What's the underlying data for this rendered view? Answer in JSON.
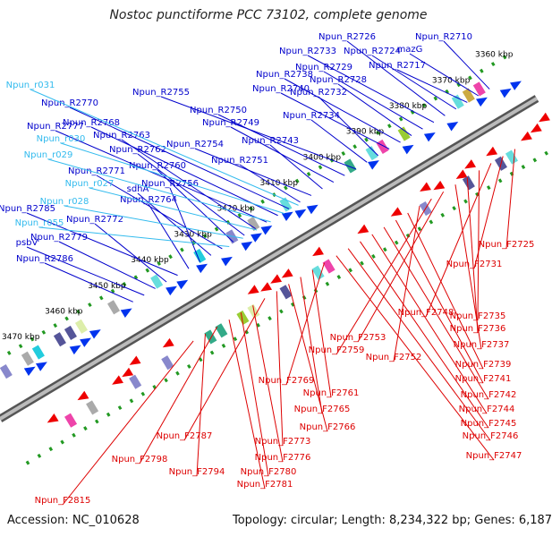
{
  "title": "Nostoc punctiforme PCC 73102, complete genome",
  "footer": {
    "accession": "Accession: NC_010628",
    "topology": "Topology: circular; Length: 8,234,322 bp; Genes: 6,187"
  },
  "colors": {
    "plus_label": "#0000cc",
    "rna_label": "#33bbee",
    "minus_label": "#dd0000",
    "tick_dot": "#229922",
    "backbone": "#888888"
  },
  "kbp_ticks": [
    "3360 kbp",
    "3370 kbp",
    "3380 kbp",
    "3390 kbp",
    "3400 kbp",
    "3410 kbp",
    "3420 kbp",
    "3430 kbp",
    "3440 kbp",
    "3450 kbp",
    "3460 kbp",
    "3470 kbp"
  ],
  "plus_labels": [
    "Npun_R2710",
    "mazG",
    "Npun_R2717",
    "Npun_R2724",
    "Npun_R2726",
    "Npun_R2733",
    "Npun_R2729",
    "Npun_R2728",
    "Npun_R2738",
    "Npun_R2740",
    "Npun_R2732",
    "Npun_R2734",
    "Npun_R2755",
    "Npun_R2750",
    "Npun_R2749",
    "Npun_R2743",
    "Npun_R2754",
    "Npun_R2751",
    "Npun_R2770",
    "Npun_R2768",
    "Npun_R2777",
    "Npun_R2763",
    "Npun_R2762",
    "Npun_R2760",
    "Npun_R2771",
    "sdhA",
    "Npun_R2756",
    "Npun_R2764",
    "Npun_R2785",
    "Npun_R2772",
    "Npun_R2779",
    "psbV",
    "Npun_R2786"
  ],
  "rna_labels": [
    "Npun_r031",
    "Npun_r030",
    "Npun_r029",
    "Npun_r027",
    "Npun_r028",
    "Npun_r055"
  ],
  "minus_labels": [
    "Npun_F2725",
    "Npun_F2731",
    "Npun_F2748",
    "Npun_F2735",
    "Npun_F2736",
    "Npun_F2737",
    "Npun_F2753",
    "Npun_F2759",
    "Npun_F2752",
    "Npun_F2739",
    "Npun_F2741",
    "Npun_F2742",
    "Npun_F2744",
    "Npun_F2745",
    "Npun_F2746",
    "Npun_F2747",
    "Npun_F2769",
    "Npun_F2761",
    "Npun_F2765",
    "Npun_F2766",
    "Npun_F2773",
    "Npun_F2787",
    "Npun_F2776",
    "Npun_F2780",
    "Npun_F2781",
    "Npun_F2798",
    "Npun_F2794",
    "Npun_F2815"
  ]
}
